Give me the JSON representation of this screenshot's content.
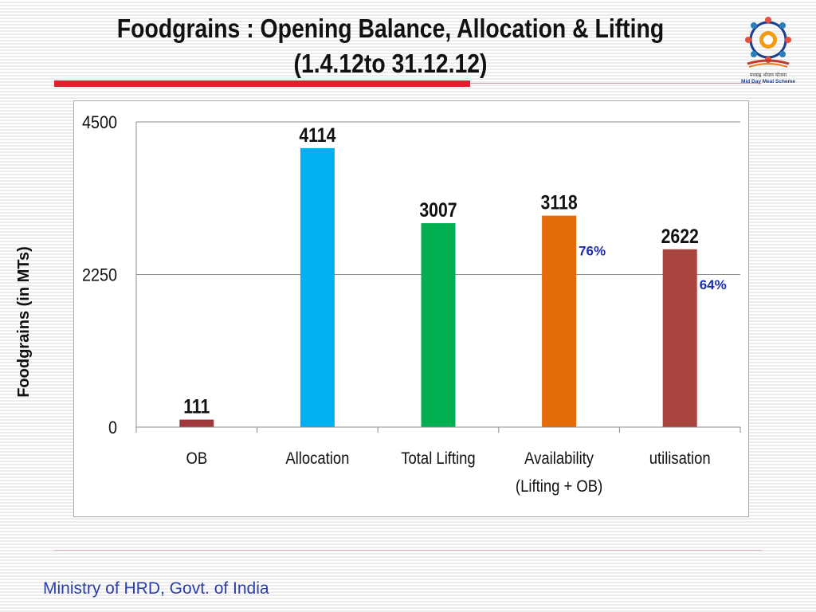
{
  "title_line1": "Foodgrains : Opening Balance, Allocation & Lifting",
  "title_line2": "(1.4.12to 31.12.12)",
  "footer": "Ministry of HRD, Govt. of India",
  "logo_text": [
    "मध्याह्न भोजन योजना",
    "Mid Day Meal Scheme"
  ],
  "colors": {
    "accent_red": "#d9232d",
    "footer_blue": "#2b3fa8",
    "percent_blue": "#1f2fb0"
  },
  "chart_data": {
    "type": "bar",
    "title": "",
    "xlabel": "",
    "ylabel": "Foodgrains (in MTs)",
    "ylim": [
      0,
      4500
    ],
    "yticks": [
      "0",
      "2250",
      "4500"
    ],
    "grid": true,
    "categories": [
      "OB",
      "Allocation",
      "Total Lifting",
      "Availability (Lifting + OB)",
      "utilisation"
    ],
    "category_label_lines": [
      [
        "OB"
      ],
      [
        "Allocation"
      ],
      [
        "Total Lifting"
      ],
      [
        "Availability",
        "(Lifting + OB)"
      ],
      [
        "utilisation"
      ]
    ],
    "values": [
      111,
      4114,
      3007,
      3118,
      2622
    ],
    "data_labels": [
      "111",
      "4114",
      "3007",
      "3118",
      "2622"
    ],
    "bar_colors": [
      "#a0393b",
      "#00b0f0",
      "#00b050",
      "#e36c09",
      "#a9443f"
    ],
    "annotations": [
      {
        "category": "Availability (Lifting + OB)",
        "text": "76%"
      },
      {
        "category": "utilisation",
        "text": "64%"
      }
    ]
  }
}
